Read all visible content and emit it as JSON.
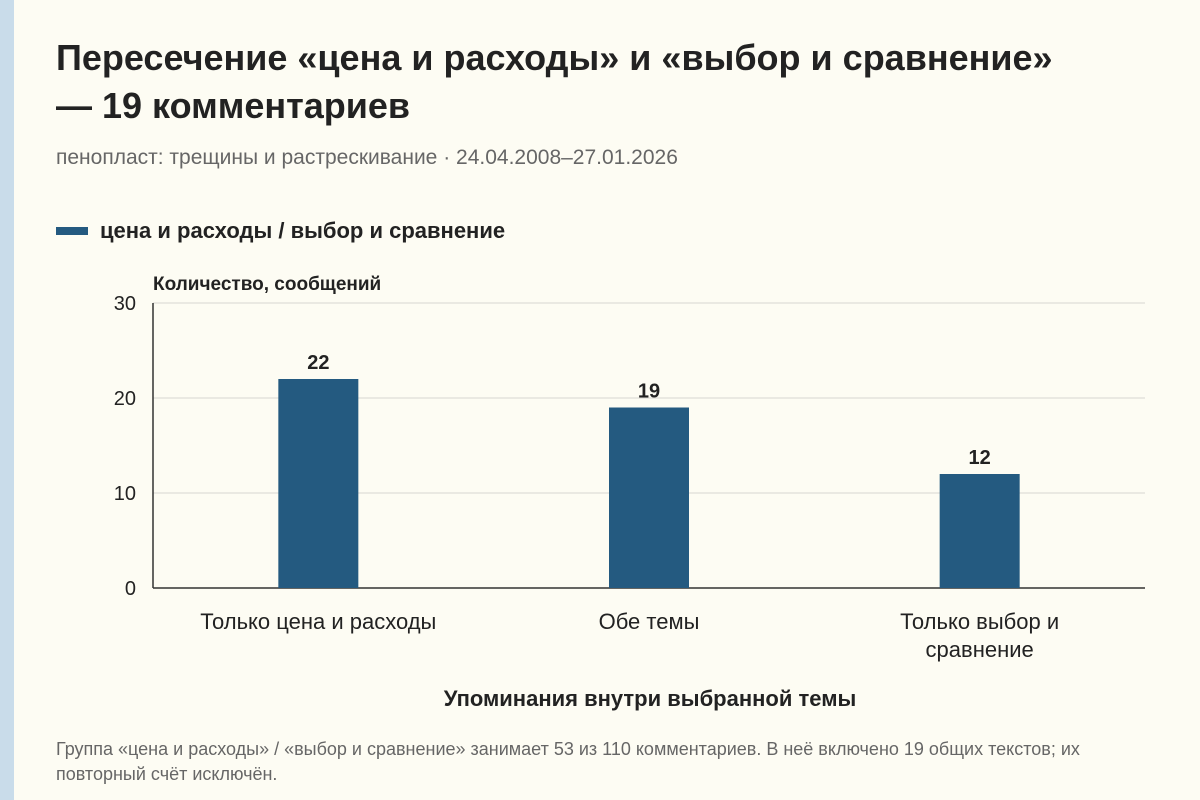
{
  "chart_data": {
    "type": "bar",
    "title": "Пересечение «цена и расходы» и «выбор и сравнение» — 19 комментариев",
    "subtitle": "пенопласт: трещины и растрескивание · 24.04.2008–27.01.2026",
    "ylabel": "Количество, сообщений",
    "xlabel": "Упоминания внутри выбранной темы",
    "ylim": [
      0,
      30
    ],
    "yticks": [
      0,
      10,
      20,
      30
    ],
    "grid": true,
    "legend_position": "top-left",
    "categories": [
      [
        "Только цена и расходы"
      ],
      [
        "Обе темы"
      ],
      [
        "Только выбор и",
        "сравнение"
      ]
    ],
    "series": [
      {
        "name": "цена и расходы / выбор и сравнение",
        "color": "#245a80",
        "values": [
          22,
          19,
          12
        ]
      }
    ]
  },
  "note": "Группа «цена и расходы» / «выбор и сравнение» занимает 53 из 110 комментариев. В неё включено 19 общих текстов; их повторный счёт исключён."
}
